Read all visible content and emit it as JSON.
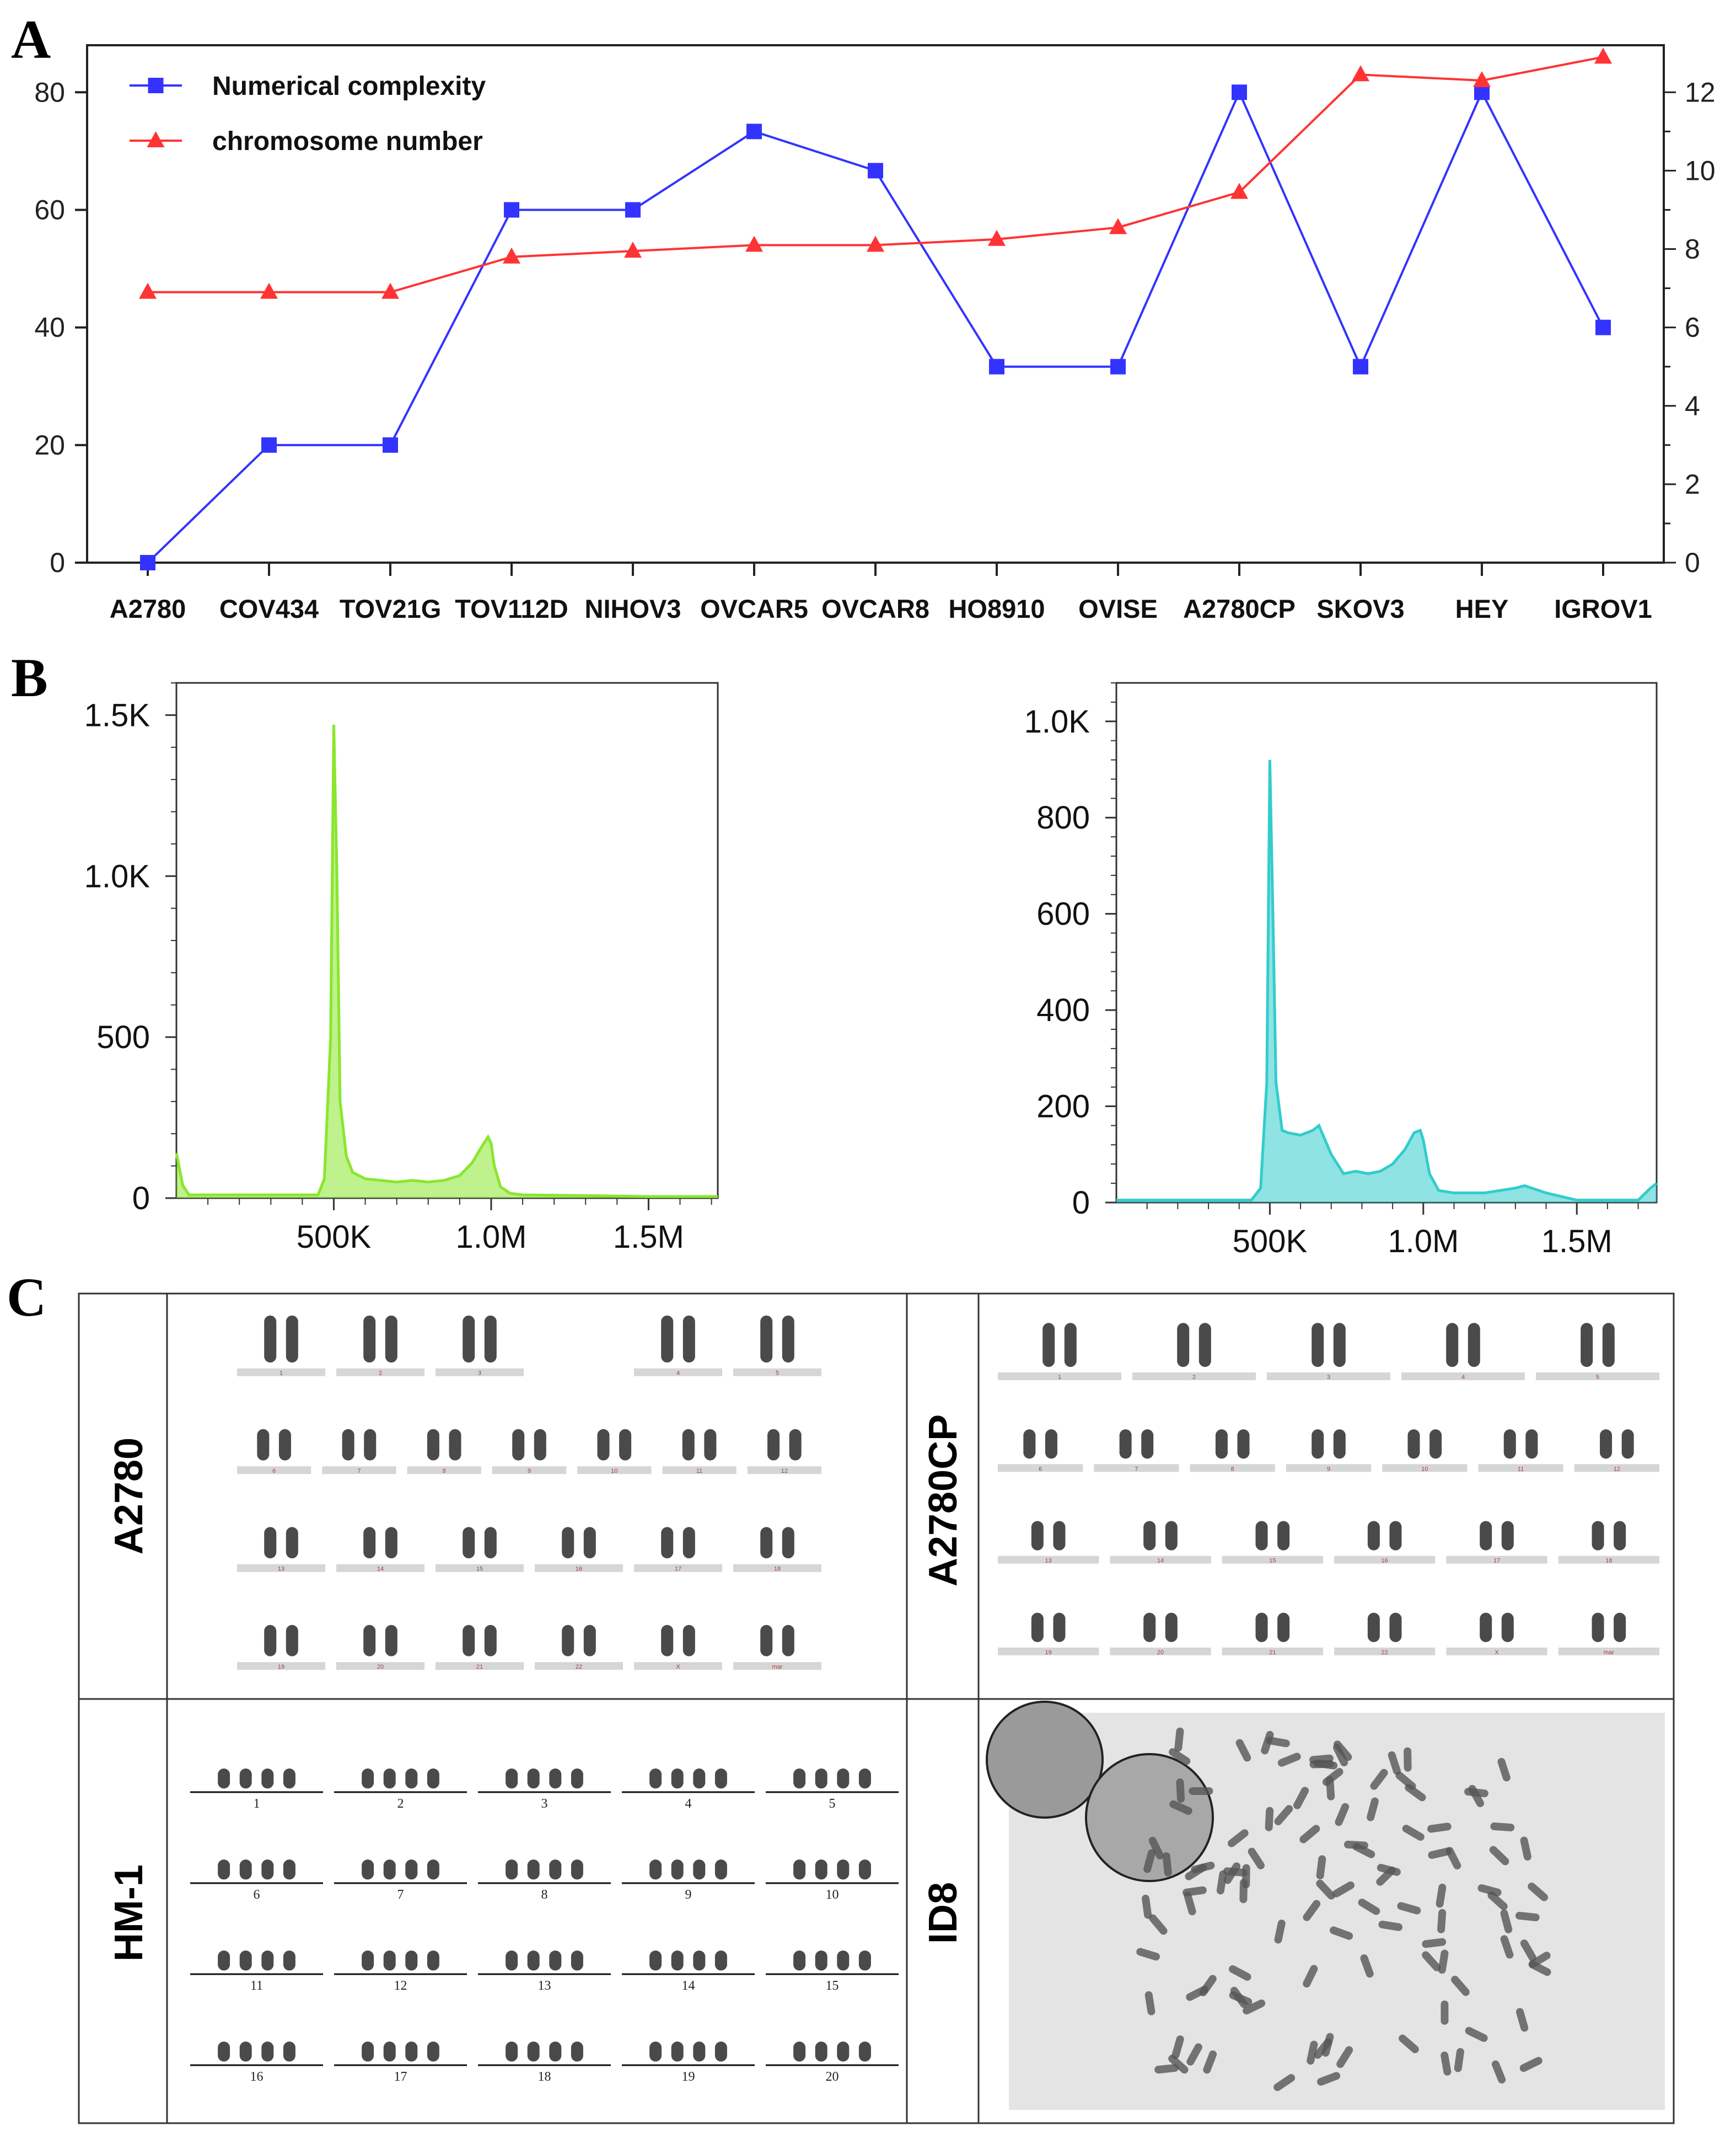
{
  "panel_letters": {
    "a": "A",
    "b": "B",
    "c": "C"
  },
  "chart_data": [
    {
      "type": "line",
      "panel": "A",
      "categories": [
        "A2780",
        "COV434",
        "TOV21G",
        "TOV112D",
        "NIHOV3",
        "OVCAR5",
        "OVCAR8",
        "HO8910",
        "OVISE",
        "A2780CP",
        "SKOV3",
        "HEY",
        "IGROV1"
      ],
      "series": [
        {
          "name": "Numerical complexity",
          "axis": "right",
          "color": "#3333ff",
          "marker": "square",
          "values": [
            0,
            3,
            3,
            9,
            9,
            11,
            10,
            5,
            5,
            12,
            5,
            12,
            6
          ]
        },
        {
          "name": "chromosome number",
          "axis": "left",
          "color": "#ff3333",
          "marker": "triangle",
          "values": [
            46,
            46,
            46,
            52,
            53,
            54,
            54,
            55,
            57,
            63,
            83,
            82,
            86
          ]
        }
      ],
      "y_left": {
        "lim": [
          0,
          88
        ],
        "ticks": [
          "0",
          "20",
          "40",
          "60",
          "80"
        ],
        "tick_values": [
          0,
          20,
          40,
          60,
          80
        ]
      },
      "y_right": {
        "lim": [
          0,
          13.2
        ],
        "ticks": [
          "0",
          "2",
          "4",
          "6",
          "8",
          "10",
          "12"
        ],
        "tick_values": [
          0,
          2,
          4,
          6,
          8,
          10,
          12
        ]
      },
      "legend_position": "top-left"
    },
    {
      "type": "area",
      "panel": "B-left",
      "color": "#8ae62e",
      "x": [
        0,
        20000,
        40000,
        450000,
        470000,
        490000,
        500000,
        510000,
        520000,
        540000,
        560000,
        600000,
        650000,
        700000,
        750000,
        800000,
        850000,
        900000,
        940000,
        970000,
        990000,
        1000000,
        1010000,
        1030000,
        1060000,
        1100000,
        1300000,
        1500000,
        1720000
      ],
      "y": [
        140,
        40,
        10,
        10,
        60,
        500,
        1470,
        1000,
        300,
        130,
        80,
        60,
        55,
        50,
        55,
        50,
        55,
        70,
        110,
        160,
        190,
        170,
        100,
        35,
        15,
        10,
        8,
        5,
        5
      ],
      "xlim": [
        0,
        1720000
      ],
      "ylim": [
        0,
        1600
      ],
      "x_ticks": [
        "500K",
        "1.0M",
        "1.5M"
      ],
      "x_tick_values": [
        500000,
        1000000,
        1500000
      ],
      "y_ticks": [
        "0",
        "500",
        "1.0K",
        "1.5K"
      ],
      "y_tick_values": [
        0,
        500,
        1000,
        1500
      ]
    },
    {
      "type": "area",
      "panel": "B-right",
      "color": "#33cccc",
      "x": [
        0,
        400000,
        440000,
        470000,
        490000,
        500000,
        510000,
        520000,
        540000,
        560000,
        600000,
        640000,
        660000,
        700000,
        740000,
        780000,
        820000,
        860000,
        900000,
        940000,
        970000,
        990000,
        1000000,
        1020000,
        1050000,
        1100000,
        1200000,
        1250000,
        1300000,
        1330000,
        1400000,
        1500000,
        1700000,
        1740000,
        1760000
      ],
      "y": [
        5,
        5,
        5,
        30,
        250,
        920,
        600,
        250,
        150,
        145,
        140,
        150,
        160,
        100,
        60,
        65,
        60,
        65,
        80,
        110,
        145,
        150,
        130,
        60,
        25,
        20,
        20,
        25,
        30,
        35,
        20,
        5,
        5,
        30,
        40
      ],
      "xlim": [
        0,
        1760000
      ],
      "ylim": [
        0,
        1080
      ],
      "x_ticks": [
        "500K",
        "1.0M",
        "1.5M"
      ],
      "x_tick_values": [
        500000,
        1000000,
        1500000
      ],
      "y_ticks": [
        "0",
        "200",
        "400",
        "600",
        "800",
        "1.0K"
      ],
      "y_tick_values": [
        0,
        200,
        400,
        600,
        800,
        1000
      ]
    }
  ],
  "karyotypes": {
    "a2780": {
      "label": "A2780",
      "rows": [
        {
          "groups": [
            "1",
            "2",
            "3",
            "",
            "4",
            "5"
          ]
        },
        {
          "groups": [
            "6",
            "7",
            "8",
            "9",
            "10",
            "11",
            "12"
          ]
        },
        {
          "groups": [
            "13",
            "14",
            "15",
            "16",
            "17",
            "18"
          ]
        },
        {
          "groups": [
            "19",
            "20",
            "21",
            "22",
            "X",
            "mar"
          ]
        }
      ]
    },
    "a2780cp": {
      "label": "A2780CP",
      "rows": [
        {
          "groups": [
            "1",
            "2",
            "3",
            "4",
            "5"
          ]
        },
        {
          "groups": [
            "6",
            "7",
            "8",
            "9",
            "10",
            "11",
            "12"
          ]
        },
        {
          "groups": [
            "13",
            "14",
            "15",
            "16",
            "17",
            "18"
          ]
        },
        {
          "groups": [
            "19",
            "20",
            "21",
            "22",
            "X",
            "mar"
          ]
        }
      ]
    },
    "hm1": {
      "label": "HM-1",
      "rows": [
        {
          "groups": [
            "1",
            "2",
            "3",
            "4",
            "5"
          ]
        },
        {
          "groups": [
            "6",
            "7",
            "8",
            "9",
            "10"
          ]
        },
        {
          "groups": [
            "11",
            "12",
            "13",
            "14",
            "15"
          ]
        },
        {
          "groups": [
            "16",
            "17",
            "18",
            "19",
            "20"
          ]
        }
      ]
    },
    "id8": {
      "label": "ID8"
    }
  }
}
